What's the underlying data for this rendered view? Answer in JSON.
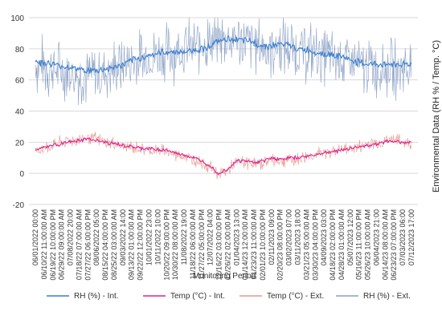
{
  "chart_data": {
    "type": "line",
    "title": "",
    "xlabel": "Monitoring Period",
    "ylabel": "Environmental Data (RH % / Temp. °C)",
    "ylim": [
      -20,
      100
    ],
    "yticks": [
      -20,
      0,
      20,
      40,
      60,
      80,
      100
    ],
    "grid": true,
    "legend_position": "bottom",
    "x_tick_labels": [
      "06/01/2022 00:00",
      "06/10/22 11:00:00 AM",
      "06/19/22 10:00:00 PM",
      "06/29/22 09:00:00 AM",
      "07/08/2022 20:00",
      "07/18/22 07:00:00 AM",
      "07/27/22 06:00:00 PM",
      "08/06/2022 05:00",
      "08/15/22 04:00:00 PM",
      "08/25/22 03:00:00 AM",
      "09/03/2022 14:00",
      "09/13/22 01:00:00 AM",
      "09/22/22 12:00:00 PM",
      "10/01/2022 23:00",
      "10/11/2022 10:00",
      "10/20/22 09:00:00 PM",
      "10/30/22 08:00:00 AM",
      "11/08/2022 19:00",
      "11/18/22 06:00:00 AM",
      "11/27/22 05:00:00 PM",
      "12/07/2022 04:00",
      "12/16/22 03:00:00 PM",
      "12/26/22 02:00:00 AM",
      "01/04/2023 13:00",
      "01/14/23 12:00:00 AM",
      "01/23/23 11:00:00 AM",
      "02/01/23 10:00:00 PM",
      "02/11/2023 09:00",
      "02/20/23 08:00:00 PM",
      "03/02/2023 07:00",
      "03/11/2023 18:00",
      "03/21/23 05:00:00 AM",
      "03/30/23 04:00:00 PM",
      "04/09/2023 03:00",
      "04/18/23 02:00:00 PM",
      "04/28/23 01:00:00 AM",
      "05/07/2023 12:00",
      "05/16/23 11:00:00 PM",
      "05/26/23 10:00:00 AM",
      "06/04/2023 21:00",
      "06/14/23 08:00:00 AM",
      "06/23/23 07:00:00 PM",
      "07/03/2023 06:00",
      "07/12/2023 17:00"
    ],
    "series": [
      {
        "name": "RH (%) - Int.",
        "color": "#3a7fd0",
        "values": [
          72,
          71,
          70,
          69,
          68,
          67,
          66,
          66,
          67,
          68,
          70,
          72,
          74,
          76,
          77,
          78,
          78,
          78,
          79,
          80,
          82,
          85,
          86,
          86,
          85,
          84,
          82,
          82,
          83,
          82,
          80,
          79,
          78,
          77,
          76,
          75,
          73,
          71,
          70,
          70,
          70,
          70,
          70,
          70
        ]
      },
      {
        "name": "Temp (°C) - Int.",
        "color": "#e0238f",
        "values": [
          15,
          17,
          18,
          19,
          20,
          21,
          22,
          21,
          20,
          19,
          18,
          17,
          16,
          16,
          15,
          15,
          13,
          12,
          10,
          8,
          5,
          0,
          3,
          8,
          8,
          7,
          8,
          10,
          9,
          10,
          10,
          11,
          12,
          13,
          14,
          15,
          16,
          17,
          18,
          19,
          20,
          21,
          20,
          20
        ]
      },
      {
        "name": "Temp (°C) - Ext.",
        "color": "#e39a8e",
        "values": [
          14,
          16,
          18,
          20,
          21,
          22,
          23,
          22,
          20,
          19,
          17,
          17,
          16,
          15,
          15,
          14,
          12,
          11,
          9,
          7,
          4,
          -1,
          2,
          7,
          7,
          6,
          7,
          9,
          8,
          9,
          9,
          11,
          12,
          13,
          14,
          15,
          16,
          17,
          19,
          20,
          21,
          22,
          20,
          19
        ]
      },
      {
        "name": "RH (%) - Ext.",
        "color": "#8a9fc4",
        "values": [
          70,
          69,
          67,
          66,
          64,
          63,
          62,
          63,
          65,
          67,
          69,
          71,
          73,
          75,
          77,
          78,
          79,
          80,
          81,
          82,
          84,
          86,
          87,
          86,
          84,
          83,
          81,
          80,
          82,
          81,
          79,
          78,
          77,
          76,
          74,
          73,
          71,
          69,
          68,
          68,
          68,
          67,
          68,
          68
        ]
      }
    ]
  }
}
